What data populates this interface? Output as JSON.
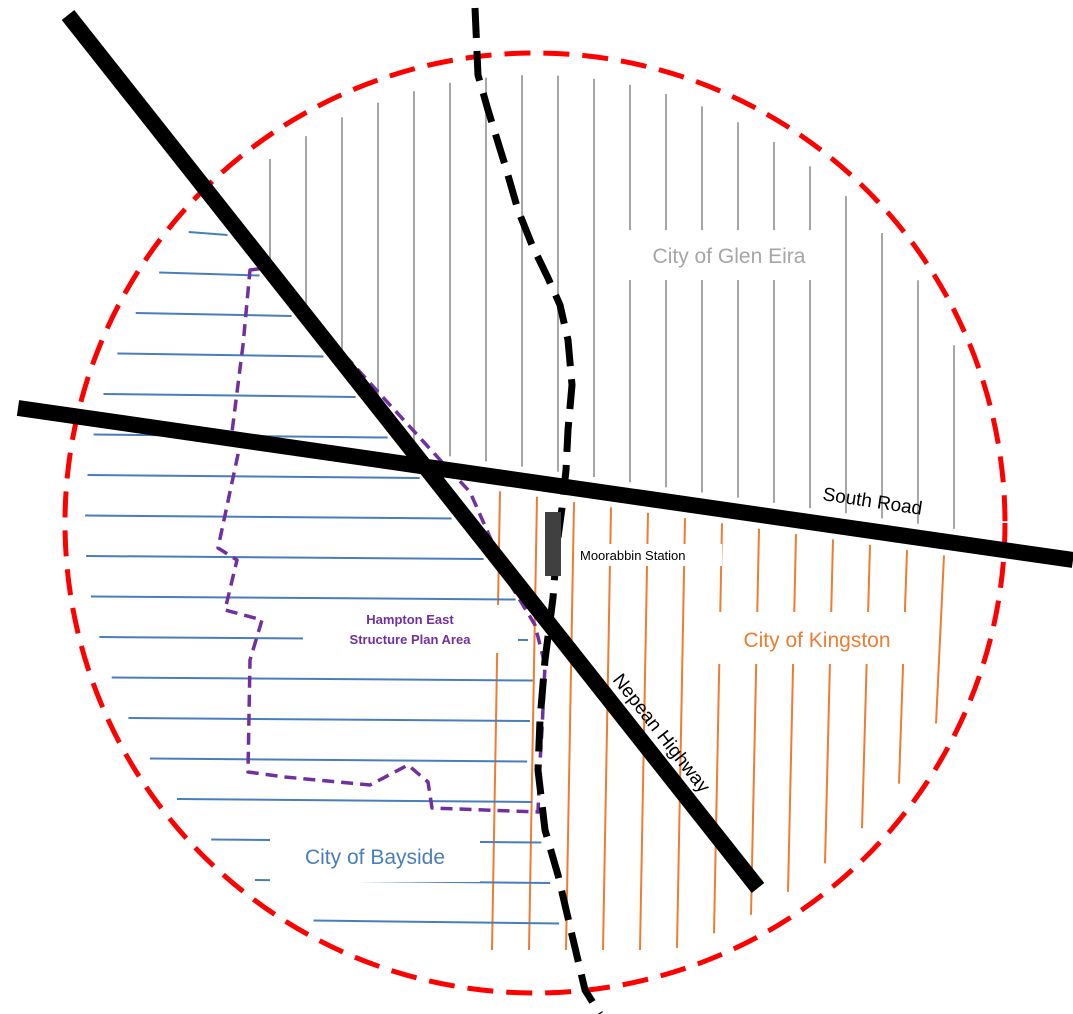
{
  "map": {
    "regions": {
      "glen_eira": {
        "name": "City of Glen Eira",
        "color": "#a6a6a6"
      },
      "kingston": {
        "name": "City of Kingston",
        "color": "#ed7d31"
      },
      "bayside": {
        "name": "City of Bayside",
        "color": "#4a7ebb"
      }
    },
    "roads": {
      "south_road": {
        "name": "South Road",
        "color": "#000000"
      },
      "nepean_highway": {
        "name": "Nepean Highway",
        "color": "#000000"
      }
    },
    "station": {
      "name": "Moorabbin Station",
      "color": "#404040"
    },
    "plan_area": {
      "name_line1": "Hampton East",
      "name_line2": "Structure Plan Area",
      "color": "#7030a0"
    },
    "radius_boundary": {
      "color": "#ff0000"
    },
    "railway": {
      "color": "#000000"
    }
  }
}
